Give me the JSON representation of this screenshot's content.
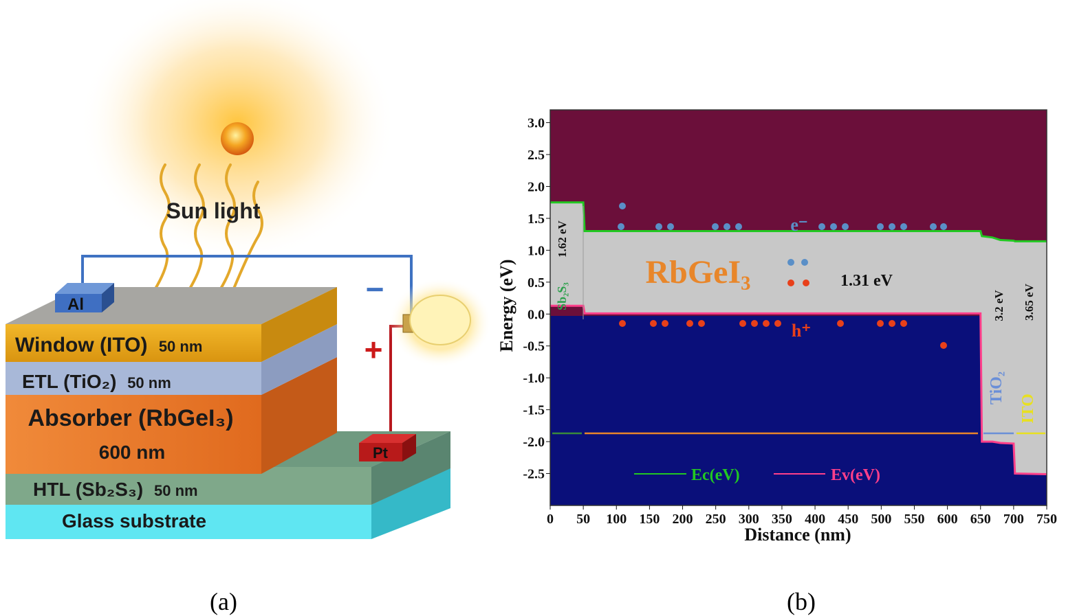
{
  "panel_a": {
    "caption": "(a)",
    "sun_label": "Sun light",
    "anode": "Al",
    "cathode": "Pt",
    "minus_sign": "−",
    "plus_sign": "+",
    "layers": {
      "window": {
        "label": "Window (ITO)",
        "thickness": "50 nm"
      },
      "etl": {
        "label": "ETL (TiO₂)",
        "thickness": "50 nm"
      },
      "absorber": {
        "label": "Absorber (RbGeI₃)",
        "thickness": "600 nm"
      },
      "htl": {
        "label": "HTL (Sb₂S₃)",
        "thickness": "50 nm"
      },
      "substrate": {
        "label": "Glass substrate"
      }
    },
    "colors": {
      "window": "#e8a317",
      "etl": "#a8b8d8",
      "absorber": "#e8782a",
      "htl": "#7fa88a",
      "substrate": "#5fe6f2",
      "sun": "#f5a623"
    }
  },
  "panel_b": {
    "caption": "(b)",
    "layer_labels": {
      "htl": "Sb₂S₃",
      "absorber": "RbGeI₃",
      "etl": "TiO₂",
      "tco": "ITO"
    },
    "annotations": {
      "htl_gap": "1.62 eV",
      "absorber_gap": "1.31 eV",
      "etl_gap": "3.2 eV",
      "tco_gap": "3.65 eV",
      "electron": "e⁻",
      "hole": "h⁺"
    },
    "colors": {
      "top_region": "#6b0f3a",
      "bottom_region": "#0a0f7a",
      "gap": "#c8c8c8",
      "ec_line": "#22c822",
      "ev_line": "#ff3f8a",
      "electron": "#5a8fc7",
      "hole": "#e8401a"
    }
  },
  "chart_data": {
    "type": "line",
    "xlabel": "Distance (nm)",
    "ylabel": "Energy (eV)",
    "xlim": [
      0,
      750
    ],
    "ylim": [
      -3.0,
      3.2
    ],
    "xticks": [
      0,
      50,
      100,
      150,
      200,
      250,
      300,
      350,
      400,
      450,
      500,
      550,
      600,
      650,
      700,
      750
    ],
    "yticks": [
      3.0,
      2.5,
      2.0,
      1.5,
      1.0,
      0.5,
      0.0,
      -0.5,
      -1.0,
      -1.5,
      -2.0,
      -2.5
    ],
    "legend_position": "bottom-left",
    "series": [
      {
        "name": "Ec(eV)",
        "x": [
          0,
          50,
          52,
          650,
          652,
          668,
          680,
          700,
          702,
          750
        ],
        "y": [
          1.75,
          1.75,
          1.3,
          1.3,
          1.22,
          1.2,
          1.16,
          1.15,
          1.14,
          1.14
        ]
      },
      {
        "name": "Ev(eV)",
        "x": [
          0,
          50,
          52,
          650,
          652,
          668,
          680,
          700,
          702,
          750
        ],
        "y": [
          0.13,
          0.13,
          0.01,
          0.01,
          -2.0,
          -2.0,
          -2.02,
          -2.03,
          -2.5,
          -2.51
        ]
      }
    ]
  }
}
